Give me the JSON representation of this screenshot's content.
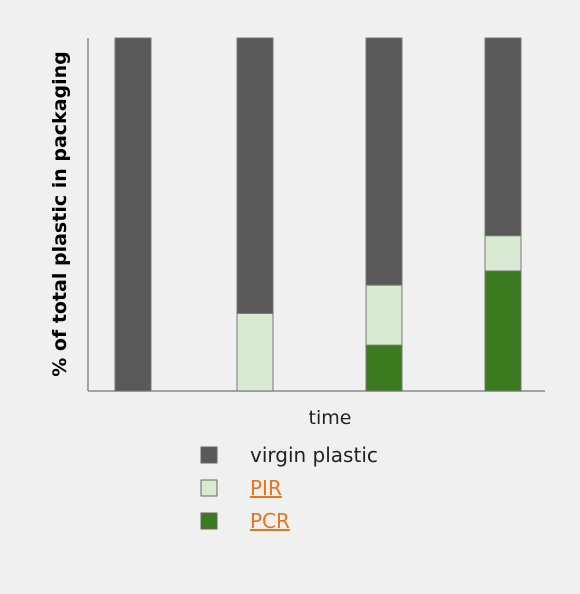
{
  "chart_data": {
    "type": "bar",
    "stacked": true,
    "categories": [
      "",
      "",
      "",
      ""
    ],
    "xlabel": "time",
    "ylabel": "% of total plastic in packaging",
    "ylim": [
      0,
      100
    ],
    "series": [
      {
        "name": "PCR",
        "values": [
          0,
          0,
          13,
          34
        ],
        "color": "#3b7a1f"
      },
      {
        "name": "PIR",
        "values": [
          0,
          22,
          17,
          10
        ],
        "color": "#d9ead3"
      },
      {
        "name": "virgin plastic",
        "values": [
          100,
          78,
          70,
          56
        ],
        "color": "#595959"
      }
    ],
    "legend": {
      "placement": "bottom",
      "items": [
        {
          "name": "virgin plastic",
          "color": "#595959",
          "link": false
        },
        {
          "name": "PIR",
          "color": "#d9ead3",
          "link": true
        },
        {
          "name": "PCR",
          "color": "#3b7a1f",
          "link": true
        }
      ]
    },
    "grid": false
  }
}
